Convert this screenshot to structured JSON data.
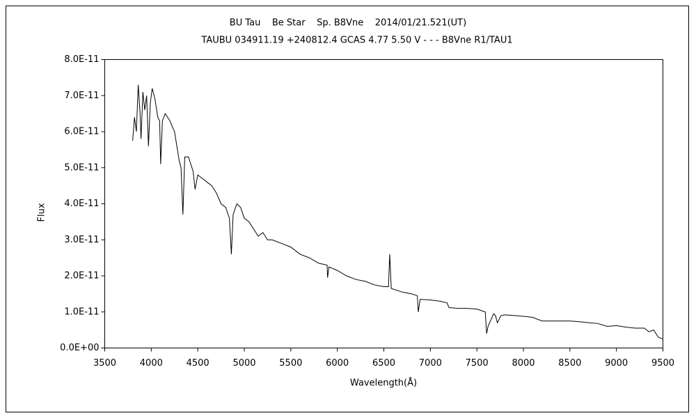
{
  "chart_data": {
    "type": "line",
    "title": "BU Tau    Be Star    Sp. B8Vne    2014/01/21.521(UT)",
    "subtitle": "TAUBU 034911.19 +240812.4 GCAS 4.77 5.50 V - - - B8Vne R1/TAU1",
    "xlabel": "Wavelength(Å)",
    "ylabel": "Flux",
    "color": "#000000",
    "x": [
      3800,
      3820,
      3840,
      3860,
      3880,
      3890,
      3910,
      3930,
      3950,
      3970,
      3990,
      4010,
      4040,
      4070,
      4090,
      4101,
      4120,
      4150,
      4200,
      4250,
      4300,
      4320,
      4340,
      4360,
      4400,
      4450,
      4471,
      4500,
      4550,
      4600,
      4650,
      4700,
      4750,
      4800,
      4840,
      4861,
      4880,
      4920,
      4960,
      5000,
      5050,
      5100,
      5150,
      5200,
      5250,
      5300,
      5400,
      5500,
      5600,
      5700,
      5800,
      5890,
      5895,
      5910,
      6000,
      6100,
      6200,
      6300,
      6400,
      6500,
      6550,
      6563,
      6580,
      6700,
      6800,
      6860,
      6870,
      6890,
      7000,
      7100,
      7180,
      7200,
      7300,
      7400,
      7500,
      7590,
      7605,
      7620,
      7680,
      7700,
      7720,
      7760,
      7800,
      8000,
      8100,
      8200,
      8300,
      8400,
      8500,
      8600,
      8700,
      8800,
      8900,
      9000,
      9100,
      9200,
      9300,
      9350,
      9400,
      9450,
      9500
    ],
    "values": [
      5.75e-11,
      6.4e-11,
      6e-11,
      7.3e-11,
      6.5e-11,
      5.8e-11,
      7.1e-11,
      6.6e-11,
      7e-11,
      5.6e-11,
      6.8e-11,
      7.2e-11,
      6.9e-11,
      6.4e-11,
      6.3e-11,
      5.1e-11,
      6.3e-11,
      6.5e-11,
      6.3e-11,
      6e-11,
      5.2e-11,
      5e-11,
      3.7e-11,
      5.3e-11,
      5.3e-11,
      4.9e-11,
      4.4e-11,
      4.8e-11,
      4.7e-11,
      4.6e-11,
      4.5e-11,
      4.3e-11,
      4e-11,
      3.9e-11,
      3.6e-11,
      2.6e-11,
      3.7e-11,
      4e-11,
      3.9e-11,
      3.6e-11,
      3.5e-11,
      3.3e-11,
      3.1e-11,
      3.2e-11,
      3e-11,
      3e-11,
      2.9e-11,
      2.8e-11,
      2.6e-11,
      2.5e-11,
      2.35e-11,
      2.3e-11,
      1.95e-11,
      2.25e-11,
      2.15e-11,
      2e-11,
      1.9e-11,
      1.85e-11,
      1.75e-11,
      1.7e-11,
      1.7e-11,
      2.6e-11,
      1.65e-11,
      1.55e-11,
      1.5e-11,
      1.45e-11,
      1e-11,
      1.35e-11,
      1.33e-11,
      1.3e-11,
      1.25e-11,
      1.12e-11,
      1.1e-11,
      1.1e-11,
      1.08e-11,
      1e-11,
      4e-12,
      6e-12,
      9.5e-12,
      9e-12,
      7e-12,
      9e-12,
      9.2e-12,
      8.8e-12,
      8.5e-12,
      7.5e-12,
      7.5e-12,
      7.5e-12,
      7.5e-12,
      7.3e-12,
      7e-12,
      6.8e-12,
      6e-12,
      6.2e-12,
      5.8e-12,
      5.5e-12,
      5.5e-12,
      4.5e-12,
      5e-12,
      3e-12,
      2.5e-12
    ],
    "xlim": [
      3500,
      9500
    ],
    "xticks": [
      3500,
      4000,
      4500,
      5000,
      5500,
      6000,
      6500,
      7000,
      7500,
      8000,
      8500,
      9000,
      9500
    ],
    "ylim": [
      0,
      8e-11
    ],
    "yticks": [
      {
        "value": 0,
        "label": "0.0E+00"
      },
      {
        "value": 1e-11,
        "label": "1.0E-11"
      },
      {
        "value": 2e-11,
        "label": "2.0E-11"
      },
      {
        "value": 3e-11,
        "label": "3.0E-11"
      },
      {
        "value": 4e-11,
        "label": "4.0E-11"
      },
      {
        "value": 5e-11,
        "label": "5.0E-11"
      },
      {
        "value": 6e-11,
        "label": "6.0E-11"
      },
      {
        "value": 7e-11,
        "label": "7.0E-11"
      },
      {
        "value": 8e-11,
        "label": "8.0E-11"
      }
    ],
    "grid": false
  }
}
